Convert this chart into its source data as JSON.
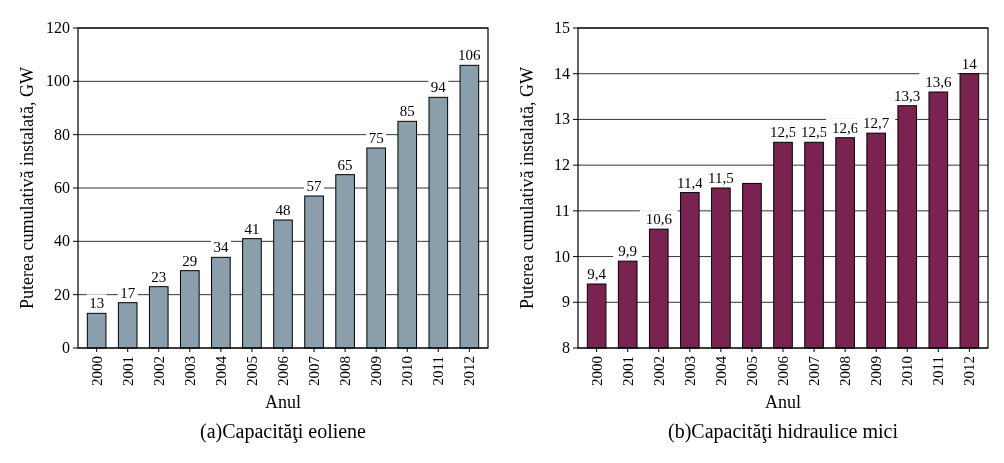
{
  "chart_data": [
    {
      "type": "bar",
      "title": "(a)Capacităţi eoliene",
      "xlabel": "Anul",
      "ylabel": "Puterea cumulativă instalată, GW",
      "categories": [
        "2000",
        "2001",
        "2002",
        "2003",
        "2004",
        "2005",
        "2006",
        "2007",
        "2008",
        "2009",
        "2010",
        "2011",
        "2012"
      ],
      "values": [
        13,
        17,
        23,
        29,
        34,
        41,
        48,
        57,
        65,
        75,
        85,
        94,
        106
      ],
      "color": "#8a9fab",
      "ylim": [
        0,
        120
      ],
      "yticks": [
        0,
        20,
        40,
        60,
        80,
        100,
        120
      ],
      "grid": "y",
      "data_labels": true
    },
    {
      "type": "bar",
      "title": "(b)Capacităţi hidraulice mici",
      "xlabel": "Anul",
      "ylabel": "Puterea cumulativă instalată, GW",
      "categories": [
        "2000",
        "2001",
        "2002",
        "2003",
        "2004",
        "2005",
        "2006",
        "2007",
        "2008",
        "2009",
        "2010",
        "2011",
        "2012"
      ],
      "values": [
        9.4,
        9.9,
        10.6,
        11.4,
        11.5,
        11.6,
        12.5,
        12.5,
        12.6,
        12.7,
        13.3,
        13.6,
        14
      ],
      "value_labels": [
        "9,4",
        "9,9",
        "10,6",
        "11,4",
        "11,5",
        null,
        "12,5",
        "12,5",
        "12,6",
        "12,7",
        "13,3",
        "13,6",
        "14"
      ],
      "color": "#7b2350",
      "ylim": [
        8,
        15
      ],
      "yticks": [
        8,
        9,
        10,
        11,
        12,
        13,
        14,
        15
      ],
      "grid": "y"
    }
  ]
}
